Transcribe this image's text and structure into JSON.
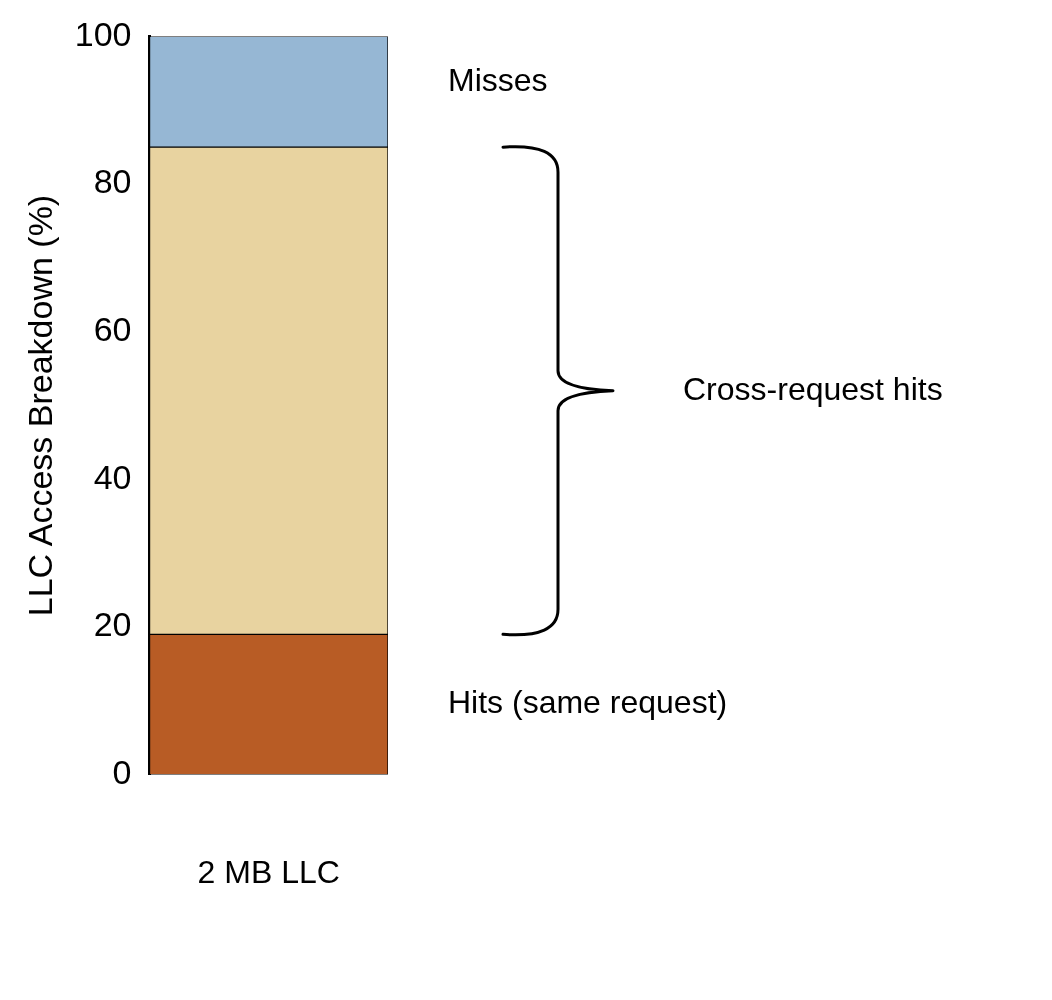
{
  "chart_data": {
    "type": "bar",
    "stacked": true,
    "ylabel": "LLC Access Breakdown (%)",
    "categories": [
      "2 MB LLC"
    ],
    "series": [
      {
        "name": "Hits (same request)",
        "color": "#b85c25",
        "values": [
          19
        ]
      },
      {
        "name": "Cross-request hits",
        "color": "#e8d3a0",
        "values": [
          66
        ]
      },
      {
        "name": "Misses",
        "color": "#96b7d4",
        "values": [
          15
        ]
      }
    ],
    "ylim": [
      0,
      100
    ],
    "yticks": [
      0,
      20,
      40,
      60,
      80,
      100
    ],
    "grid": false,
    "legend": false
  }
}
